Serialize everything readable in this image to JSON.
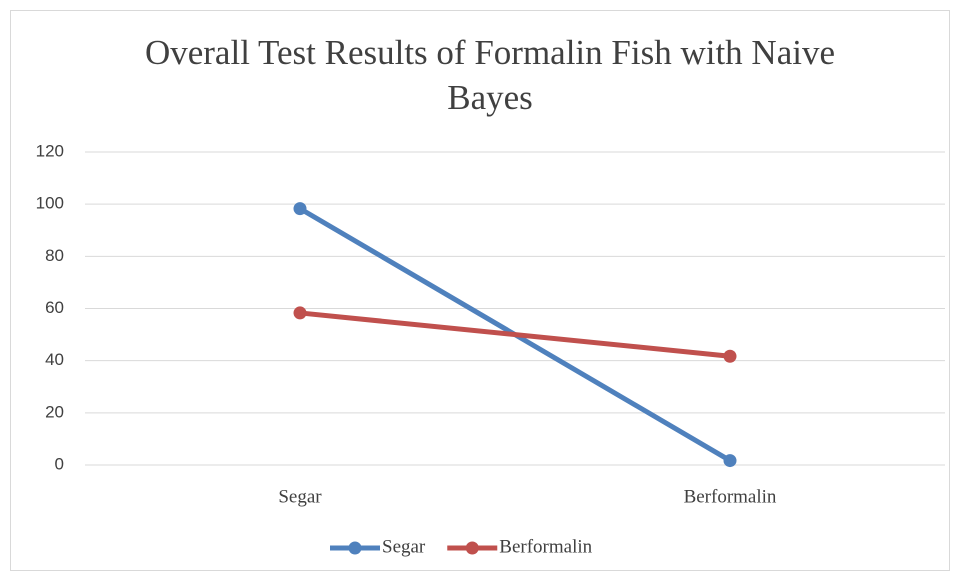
{
  "chart_data": {
    "type": "line",
    "title": "Overall Test Results of Formalin Fish with Naive Bayes",
    "categories": [
      "Segar",
      "Berformalin"
    ],
    "series": [
      {
        "name": "Segar",
        "color": "#4f81bd",
        "values": [
          98.3,
          1.7
        ]
      },
      {
        "name": "Berformalin",
        "color": "#c0504d",
        "values": [
          58.3,
          41.7
        ]
      }
    ],
    "ylim": [
      0,
      120
    ],
    "yticks": [
      0,
      20,
      40,
      60,
      80,
      100,
      120
    ],
    "grid": true,
    "legend": "bottom"
  }
}
